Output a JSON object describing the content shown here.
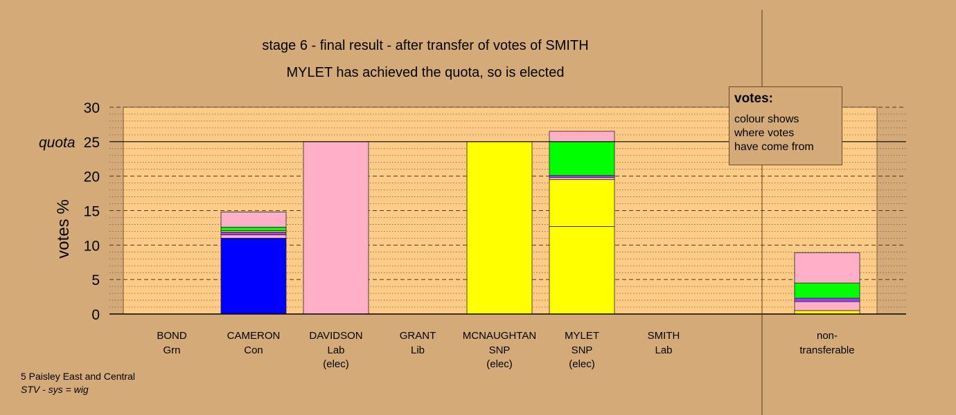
{
  "chart_data": {
    "type": "bar",
    "stacked": true,
    "title": "stage 6 - final result - after transfer of votes of SMITH",
    "subtitle": "MYLET has achieved the quota, so is elected",
    "ylabel": "votes %",
    "ylim": [
      0,
      30
    ],
    "yticks": [
      "0",
      "5",
      "10",
      "15",
      "20",
      "25",
      "30"
    ],
    "quota": {
      "label": "quota",
      "value": 25
    },
    "categories": [
      {
        "name": "BOND",
        "party": "Grn",
        "status": ""
      },
      {
        "name": "CAMERON",
        "party": "Con",
        "status": ""
      },
      {
        "name": "DAVIDSON",
        "party": "Lab",
        "status": "(elec)"
      },
      {
        "name": "GRANT",
        "party": "Lib",
        "status": ""
      },
      {
        "name": "MCNAUGHTAN",
        "party": "SNP",
        "status": "(elec)"
      },
      {
        "name": "MYLET",
        "party": "SNP",
        "status": "(elec)"
      },
      {
        "name": "SMITH",
        "party": "Lab",
        "status": ""
      },
      {
        "name": "non-",
        "party": "transferable",
        "status": ""
      }
    ],
    "bars": [
      [],
      [
        {
          "color": "#0000ff",
          "value": 11.0
        },
        {
          "color": "#ffb0c8",
          "value": 0.5
        },
        {
          "color": "#a040ff",
          "value": 0.4
        },
        {
          "color": "#ffff00",
          "value": 0.2
        },
        {
          "color": "#00ff00",
          "value": 0.5
        },
        {
          "color": "#ffb0c8",
          "value": 2.2
        }
      ],
      [
        {
          "color": "#ffb0c8",
          "value": 25.0
        }
      ],
      [],
      [
        {
          "color": "#ffff00",
          "value": 25.0
        }
      ],
      [
        {
          "color": "#ffff00",
          "value": 12.7
        },
        {
          "color": "#ffff00",
          "value": 6.8
        },
        {
          "color": "#ffb0c8",
          "value": 0.3
        },
        {
          "color": "#a040ff",
          "value": 0.3
        },
        {
          "color": "#00ff00",
          "value": 4.9
        },
        {
          "color": "#ffb0c8",
          "value": 1.5
        }
      ],
      [],
      [
        {
          "color": "#ffff00",
          "value": 0.5
        },
        {
          "color": "#ffb0c8",
          "value": 1.3
        },
        {
          "color": "#a040ff",
          "value": 0.5
        },
        {
          "color": "#00ff00",
          "value": 2.2
        },
        {
          "color": "#ffb0c8",
          "value": 4.4
        }
      ]
    ],
    "colors": {
      "background": "#d4aa78",
      "plot_area": "#ffcc88"
    }
  },
  "legend": {
    "title": "votes:",
    "lines": [
      "colour shows",
      "where votes",
      "have come from"
    ]
  },
  "footer": {
    "ward": "5 Paisley East and Central",
    "system": "STV - sys = wig"
  }
}
